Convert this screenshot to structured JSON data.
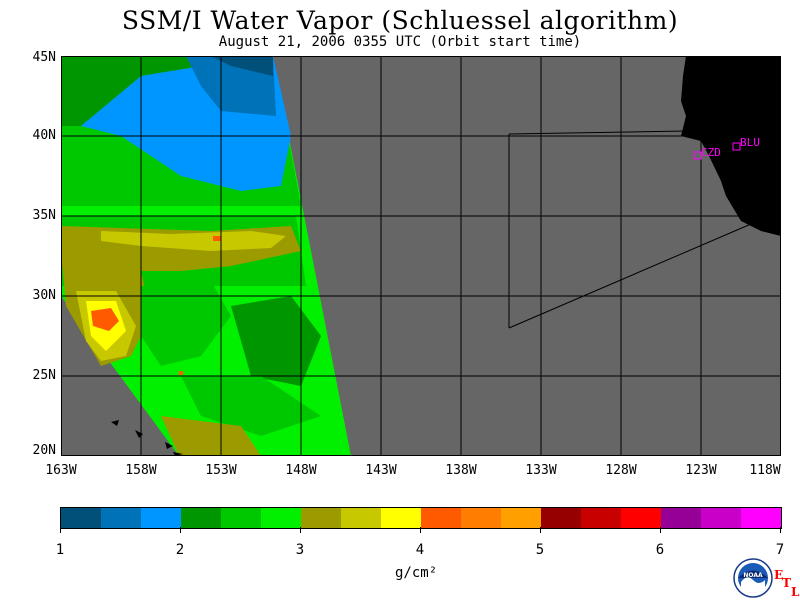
{
  "title": "SSM/I Water Vapor (Schluessel algorithm)",
  "subtitle": "August 21, 2006  0355 UTC  (Orbit start time)",
  "map": {
    "lat_labels": [
      "45N",
      "40N",
      "35N",
      "30N",
      "25N",
      "20N"
    ],
    "lon_labels": [
      "163W",
      "158W",
      "153W",
      "148W",
      "143W",
      "138W",
      "133W",
      "128W",
      "123W",
      "118W"
    ],
    "stations": [
      "CZD",
      "BLU"
    ],
    "colors": {
      "no_data": "#666666",
      "land": "#000000",
      "gridline": "#000000",
      "station": "#ff00ff"
    }
  },
  "colorbar": {
    "labels": [
      "1",
      "2",
      "3",
      "4",
      "5",
      "6",
      "7"
    ],
    "unit": "g/cm²",
    "colors": [
      "#00507a",
      "#0073b8",
      "#0096ff",
      "#009600",
      "#00c800",
      "#00f000",
      "#9b9b00",
      "#c8c800",
      "#ffff00",
      "#ff5a00",
      "#ff7d00",
      "#ffa000",
      "#960000",
      "#c80000",
      "#ff0000",
      "#960096",
      "#c800c8",
      "#ff00ff"
    ]
  },
  "logo": {
    "name": "noaa-logo",
    "text": "NOAA",
    "etl_letters": [
      "E",
      "T",
      "L"
    ]
  }
}
